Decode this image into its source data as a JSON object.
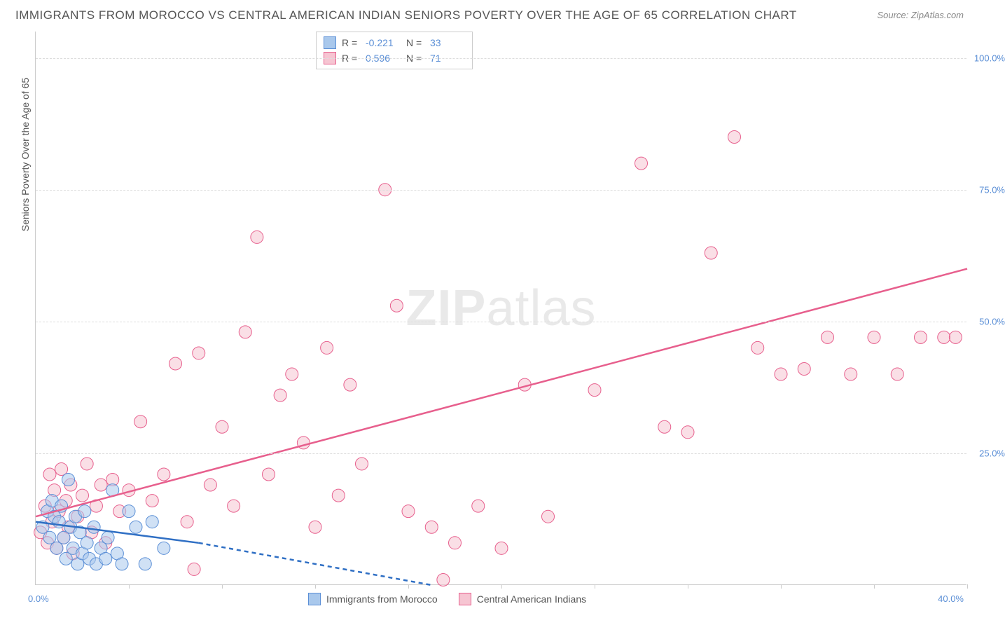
{
  "title": "IMMIGRANTS FROM MOROCCO VS CENTRAL AMERICAN INDIAN SENIORS POVERTY OVER THE AGE OF 65 CORRELATION CHART",
  "source": "Source: ZipAtlas.com",
  "y_axis_title": "Seniors Poverty Over the Age of 65",
  "watermark_bold": "ZIP",
  "watermark_rest": "atlas",
  "x_min": 0,
  "x_max": 40,
  "y_min": 0,
  "y_max": 105,
  "x_labels": {
    "min": "0.0%",
    "max": "40.0%"
  },
  "y_ticks": [
    {
      "v": 25,
      "label": "25.0%"
    },
    {
      "v": 50,
      "label": "50.0%"
    },
    {
      "v": 75,
      "label": "75.0%"
    },
    {
      "v": 100,
      "label": "100.0%"
    }
  ],
  "x_tick_positions": [
    4,
    8,
    12,
    16,
    20,
    24,
    28,
    32,
    36,
    40
  ],
  "colors": {
    "series1_fill": "#a9c8ec",
    "series1_stroke": "#5b8fd6",
    "series2_fill": "#f6c5d2",
    "series2_stroke": "#e75f8d",
    "grid": "#dddddd",
    "axis": "#cccccc",
    "text": "#555555",
    "value_text": "#5b8fd6",
    "trend1": "#2f6fc4",
    "trend2": "#e75f8d"
  },
  "marker_radius": 9,
  "marker_opacity": 0.55,
  "stats": {
    "series1": {
      "R_label": "R =",
      "R": "-0.221",
      "N_label": "N =",
      "N": "33"
    },
    "series2": {
      "R_label": "R =",
      "R": "0.596",
      "N_label": "N =",
      "N": "71"
    }
  },
  "legend": {
    "series1": "Immigrants from Morocco",
    "series2": "Central American Indians"
  },
  "trend_lines": {
    "series1": {
      "x1": 0,
      "y1": 12,
      "x2": 7,
      "y2": 8,
      "dash_x1": 7,
      "dash_y1": 8,
      "dash_x2": 17,
      "dash_y2": 0
    },
    "series2": {
      "x1": 0,
      "y1": 13,
      "x2": 40,
      "y2": 60
    }
  },
  "series1_points": [
    [
      0.3,
      11
    ],
    [
      0.5,
      14
    ],
    [
      0.6,
      9
    ],
    [
      0.7,
      16
    ],
    [
      0.8,
      13
    ],
    [
      0.9,
      7
    ],
    [
      1.0,
      12
    ],
    [
      1.1,
      15
    ],
    [
      1.2,
      9
    ],
    [
      1.3,
      5
    ],
    [
      1.4,
      20
    ],
    [
      1.5,
      11
    ],
    [
      1.6,
      7
    ],
    [
      1.7,
      13
    ],
    [
      1.8,
      4
    ],
    [
      1.9,
      10
    ],
    [
      2.0,
      6
    ],
    [
      2.1,
      14
    ],
    [
      2.2,
      8
    ],
    [
      2.3,
      5
    ],
    [
      2.5,
      11
    ],
    [
      2.6,
      4
    ],
    [
      2.8,
      7
    ],
    [
      3.0,
      5
    ],
    [
      3.1,
      9
    ],
    [
      3.3,
      18
    ],
    [
      3.5,
      6
    ],
    [
      3.7,
      4
    ],
    [
      4.0,
      14
    ],
    [
      4.3,
      11
    ],
    [
      4.7,
      4
    ],
    [
      5.0,
      12
    ],
    [
      5.5,
      7
    ]
  ],
  "series2_points": [
    [
      0.2,
      10
    ],
    [
      0.4,
      15
    ],
    [
      0.5,
      8
    ],
    [
      0.6,
      21
    ],
    [
      0.7,
      12
    ],
    [
      0.8,
      18
    ],
    [
      0.9,
      7
    ],
    [
      1.0,
      14
    ],
    [
      1.1,
      22
    ],
    [
      1.2,
      9
    ],
    [
      1.3,
      16
    ],
    [
      1.4,
      11
    ],
    [
      1.5,
      19
    ],
    [
      1.6,
      6
    ],
    [
      1.8,
      13
    ],
    [
      2.0,
      17
    ],
    [
      2.2,
      23
    ],
    [
      2.4,
      10
    ],
    [
      2.6,
      15
    ],
    [
      2.8,
      19
    ],
    [
      3.0,
      8
    ],
    [
      3.3,
      20
    ],
    [
      3.6,
      14
    ],
    [
      4.0,
      18
    ],
    [
      4.5,
      31
    ],
    [
      5.0,
      16
    ],
    [
      5.5,
      21
    ],
    [
      6.0,
      42
    ],
    [
      6.5,
      12
    ],
    [
      7.0,
      44
    ],
    [
      7.5,
      19
    ],
    [
      8.0,
      30
    ],
    [
      8.5,
      15
    ],
    [
      9.0,
      48
    ],
    [
      9.5,
      66
    ],
    [
      10.0,
      21
    ],
    [
      10.5,
      36
    ],
    [
      11.0,
      40
    ],
    [
      11.5,
      27
    ],
    [
      12.0,
      11
    ],
    [
      12.5,
      45
    ],
    [
      13.0,
      17
    ],
    [
      13.5,
      38
    ],
    [
      14.0,
      23
    ],
    [
      15.0,
      75
    ],
    [
      15.5,
      53
    ],
    [
      16.0,
      14
    ],
    [
      17.0,
      11
    ],
    [
      18.0,
      8
    ],
    [
      19.0,
      15
    ],
    [
      20.0,
      7
    ],
    [
      21.0,
      38
    ],
    [
      22.0,
      13
    ],
    [
      24.0,
      37
    ],
    [
      26.0,
      80
    ],
    [
      27.0,
      30
    ],
    [
      28.0,
      29
    ],
    [
      29.0,
      63
    ],
    [
      30.0,
      85
    ],
    [
      31.0,
      45
    ],
    [
      32.0,
      40
    ],
    [
      33.0,
      41
    ],
    [
      34.0,
      47
    ],
    [
      35.0,
      40
    ],
    [
      36.0,
      47
    ],
    [
      37.0,
      40
    ],
    [
      38.0,
      47
    ],
    [
      39.0,
      47
    ],
    [
      39.5,
      47
    ],
    [
      17.5,
      1
    ],
    [
      6.8,
      3
    ]
  ]
}
